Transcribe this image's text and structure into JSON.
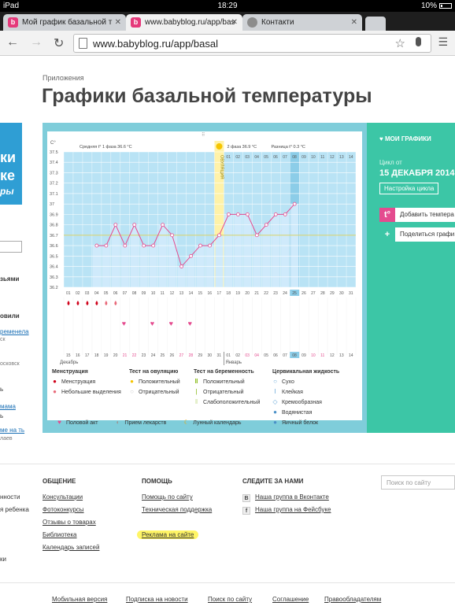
{
  "status_bar": {
    "device": "iPad",
    "time": "18:29",
    "battery": "10%"
  },
  "tabs": [
    {
      "favicon": "babyblog-icon",
      "title": "Мой график базальной т"
    },
    {
      "favicon": "babyblog-icon",
      "title": "www.babyblog.ru/app/bas"
    },
    {
      "favicon": "globe-icon",
      "title": "Контакти"
    }
  ],
  "address_bar": {
    "url": "www.babyblog.ru/app/basal"
  },
  "breadcrumb": "Приложения",
  "page_title": "Графики базальной температуры",
  "left_sidebar": {
    "banner_lines": [
      "ки",
      "ке",
      "ры"
    ],
    "fragments": [
      "зьями",
      "овили",
      "ременела",
      "ск",
      "осковск",
      "ь",
      "мама",
      "ь",
      "ме на ть",
      "лаев"
    ]
  },
  "chart_data": {
    "type": "line",
    "unit": "C°",
    "y_ticks": [
      "37.5",
      "37.4",
      "37.3",
      "37.2",
      "37.1",
      "37",
      "36.9",
      "36.8",
      "36.7",
      "36.6",
      "36.5",
      "36.4",
      "36.3",
      "36.2"
    ],
    "ylim": [
      36.2,
      37.5
    ],
    "phase1_label": "Средняя t° 1 фаза 36.6 °C",
    "phase2_label": "2 фаза 36.9 °C",
    "diff_label": "Разница t° 0.3 °C",
    "ovulation_label": "ОВУЛЯЦИЯ",
    "ovulation_day": 17,
    "coverline": 36.7,
    "cycle_days": [
      1,
      2,
      3,
      4,
      5,
      6,
      7,
      8,
      9,
      10,
      11,
      12,
      13,
      14,
      15,
      16,
      17,
      18,
      19,
      20,
      21,
      22,
      23,
      24,
      25,
      26,
      27,
      28,
      29,
      30,
      31
    ],
    "header_dates": [
      "01",
      "02",
      "03",
      "04",
      "05",
      "06",
      "07",
      "08",
      "09",
      "10",
      "11",
      "12",
      "13",
      "14"
    ],
    "temperatures": [
      null,
      null,
      null,
      36.6,
      36.6,
      36.8,
      36.6,
      36.8,
      36.6,
      36.6,
      36.8,
      36.7,
      36.4,
      36.5,
      36.6,
      36.6,
      36.7,
      36.9,
      36.9,
      36.9,
      36.7,
      36.8,
      36.9,
      36.9,
      37.0,
      null,
      null,
      null,
      null,
      null,
      null
    ],
    "day_labels": [
      "01",
      "02",
      "03",
      "04",
      "05",
      "06",
      "07",
      "08",
      "09",
      "10",
      "11",
      "12",
      "13",
      "14",
      "15",
      "16",
      "17",
      "18",
      "19",
      "20",
      "21",
      "22",
      "23",
      "24",
      "25",
      "26",
      "27",
      "28",
      "29",
      "30",
      "31"
    ],
    "today_index": 24,
    "menstruation": [
      1,
      2,
      3,
      4,
      5,
      6
    ],
    "menstruation_heavy": [
      1,
      2,
      3,
      4
    ],
    "intercourse": [
      7,
      10,
      12,
      14
    ],
    "calendar_dates": [
      "15",
      "16",
      "17",
      "18",
      "19",
      "20",
      "21",
      "22",
      "23",
      "24",
      "25",
      "26",
      "27",
      "28",
      "29",
      "30",
      "31",
      "01",
      "02",
      "03",
      "04",
      "05",
      "06",
      "07",
      "08",
      "09",
      "10",
      "11",
      "12",
      "13",
      "14"
    ],
    "weekend_dates": [
      21,
      22,
      27,
      28,
      3,
      4,
      10,
      11
    ],
    "today_calendar_index": 24,
    "month_labels": [
      "Декабрь",
      "Январь"
    ],
    "colors": {
      "bg": "#b9e3f5",
      "line": "#e44b8f",
      "ovulation": "#fff2a8",
      "coverline": "#d8d36a",
      "grid": "#ffffff",
      "today": "#8ccde8",
      "bar": "#cfeafb"
    }
  },
  "legend": {
    "menstruation": {
      "title": "Менструация",
      "items": [
        "Менструация",
        "Небольшие выделения"
      ]
    },
    "ovulation_test": {
      "title": "Тест на овуляцию",
      "items": [
        "Положительный",
        "Отрицательный"
      ]
    },
    "pregnancy_test": {
      "title": "Тест на беременность",
      "items": [
        "Положительный",
        "Отрицательный",
        "Слабоположительный"
      ]
    },
    "cervical_fluid": {
      "title": "Цервикальная жидкость",
      "items": [
        "Сухо",
        "Клейкая",
        "Кремообразная",
        "Водянистая",
        "Яичный белок"
      ]
    },
    "bottom": [
      "Половой акт",
      "Прием лекарств",
      "Лунный календарь"
    ]
  },
  "right_panel": {
    "header": "МОИ ГРАФИКИ",
    "cycle_from": "Цикл от",
    "cycle_date": "15 ДЕКАБРЯ 2014",
    "cycle_settings": "Настройка цикла",
    "add_button": "Добавить темпера",
    "share_button": "Поделиться графи"
  },
  "footer": {
    "left_fragments": [
      "нности",
      "я ребенка",
      "ки"
    ],
    "col1": {
      "title": "ОБЩЕНИЕ",
      "links": [
        "Консультации",
        "Фотоконкурсы",
        "Отзывы о товарах",
        "Библиотека",
        "Календарь записей"
      ]
    },
    "col2": {
      "title": "ПОМОЩЬ",
      "links": [
        "Помощь по сайту",
        "Техническая поддержка",
        "Реклама на сайте"
      ]
    },
    "col3": {
      "title": "СЛЕДИТЕ ЗА НАМИ",
      "links": [
        "Наша группа в Вконтакте",
        "Наша группа на Фейсбуке"
      ],
      "icons": [
        "В",
        "f"
      ]
    },
    "search_placeholder": "Поиск по сайту",
    "bottom_links": [
      "Мобильная версия",
      "Подписка на новости",
      "Поиск по сайту",
      "Соглашение",
      "Правообладателям"
    ]
  }
}
